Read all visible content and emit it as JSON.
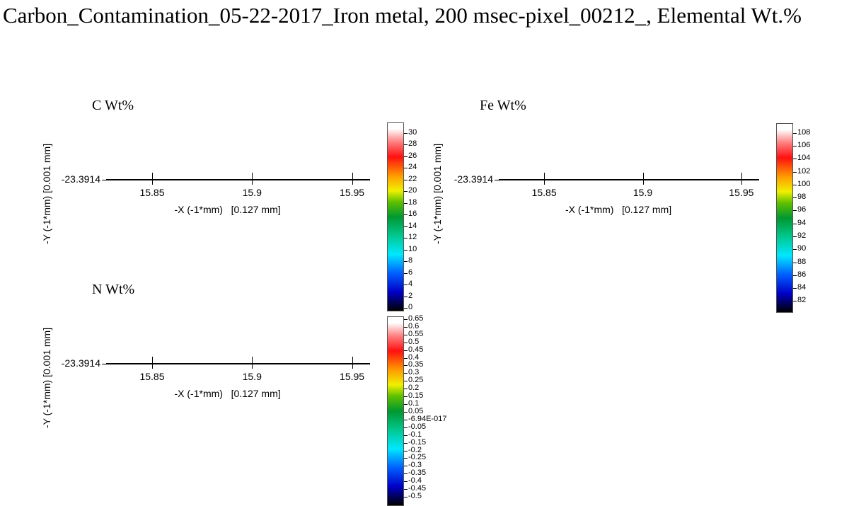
{
  "title": "Carbon_Contamination_05-22-2017_Iron metal, 200 msec-pixel_00212_, Elemental Wt.%",
  "chart_data": [
    {
      "type": "heatmap",
      "title": "C Wt%",
      "xlabel": "-X (-1*mm)   [0.127 mm]",
      "ylabel": "-Y (-1*mm)   [0.001 mm]",
      "xticks": [
        15.85,
        15.9,
        15.95
      ],
      "xtick_labels": [
        "15.85",
        "15.9",
        "15.95"
      ],
      "xlim": [
        15.827,
        15.959
      ],
      "ytick_labels": [
        "-23.3914"
      ],
      "colorbar": {
        "min": -0.36,
        "max": 31.8,
        "ticks": [
          0,
          2,
          4,
          6,
          8,
          10,
          12,
          14,
          16,
          18,
          20,
          22,
          24,
          26,
          28,
          30
        ],
        "tick_labels": [
          "0",
          "2",
          "4",
          "6",
          "8",
          "10",
          "12",
          "14",
          "16",
          "18",
          "20",
          "22",
          "24",
          "26",
          "28",
          "30"
        ]
      }
    },
    {
      "type": "heatmap",
      "title": "Fe Wt%",
      "xlabel": "-X (-1*mm)   [0.127 mm]",
      "ylabel": "-Y (-1*mm)   [0.001 mm]",
      "xticks": [
        15.85,
        15.9,
        15.95
      ],
      "xtick_labels": [
        "15.85",
        "15.9",
        "15.95"
      ],
      "xlim": [
        15.827,
        15.959
      ],
      "ytick_labels": [
        "-23.3914"
      ],
      "colorbar": {
        "min": 80.4,
        "max": 109.5,
        "ticks": [
          82,
          84,
          86,
          88,
          90,
          92,
          94,
          96,
          98,
          100,
          102,
          104,
          106,
          108
        ],
        "tick_labels": [
          "82",
          "84",
          "86",
          "88",
          "90",
          "92",
          "94",
          "96",
          "98",
          "100",
          "102",
          "104",
          "106",
          "108"
        ]
      }
    },
    {
      "type": "heatmap",
      "title": "N Wt%",
      "xlabel": "-X (-1*mm)   [0.127 mm]",
      "ylabel": "-Y (-1*mm)   [0.001 mm]",
      "xticks": [
        15.85,
        15.9,
        15.95
      ],
      "xtick_labels": [
        "15.85",
        "15.9",
        "15.95"
      ],
      "xlim": [
        15.827,
        15.959
      ],
      "ytick_labels": [
        "-23.3914"
      ],
      "colorbar": {
        "min": -0.55,
        "max": 0.668,
        "ticks": [
          0.65,
          0.6,
          0.55,
          0.5,
          0.45,
          0.4,
          0.35,
          0.3,
          0.25,
          0.2,
          0.15,
          0.1,
          0.05,
          0,
          -0.05,
          -0.1,
          -0.15,
          -0.2,
          -0.25,
          -0.3,
          -0.35,
          -0.4,
          -0.45,
          -0.5
        ],
        "tick_labels": [
          "0.65",
          "0.6",
          "0.55",
          "0.5",
          "0.45",
          "0.4",
          "0.35",
          "0.3",
          "0.25",
          "0.2",
          "0.15",
          "0.1",
          "0.05",
          "-6.94E-017",
          "-0.05",
          "-0.1",
          "-0.15",
          "-0.2",
          "-0.25",
          "-0.3",
          "-0.35",
          "-0.4",
          "-0.45",
          "-0.5"
        ]
      }
    }
  ]
}
